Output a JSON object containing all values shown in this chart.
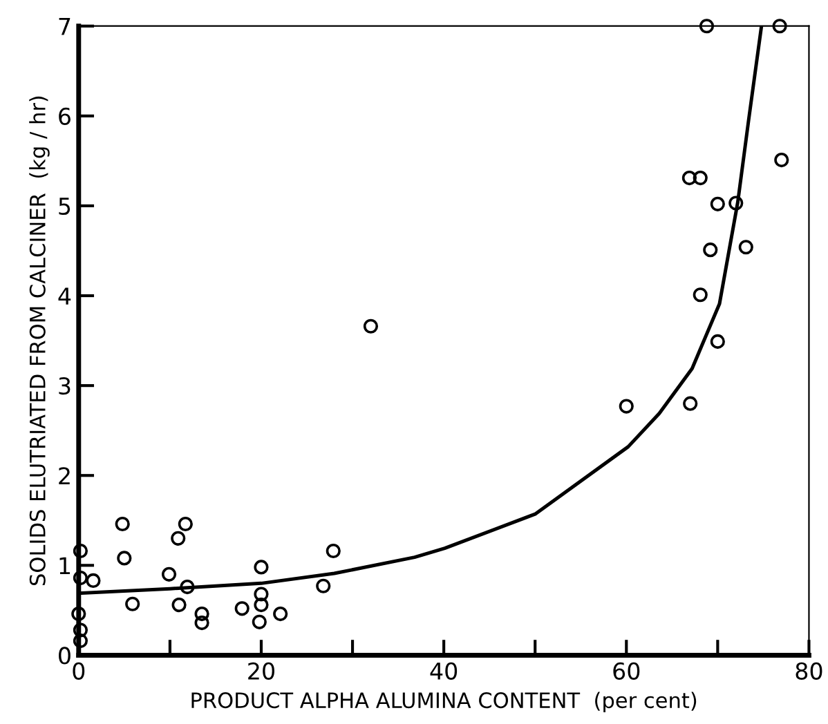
{
  "chart_data": {
    "type": "scatter",
    "xlabel": "PRODUCT ALPHA ALUMINA CONTENT  (per cent)",
    "ylabel": "SOLIDS ELUTRIATED FROM CALCINER  (kg / hr)",
    "xlim": [
      0,
      80
    ],
    "ylim": [
      0,
      7
    ],
    "xticks": [
      0,
      {
        "value": 10,
        "label": null
      },
      20,
      {
        "value": 30,
        "label": null
      },
      40,
      {
        "value": 50,
        "label": null
      },
      60,
      {
        "value": 70,
        "label": null
      },
      80
    ],
    "yticks": [
      0,
      1,
      2,
      3,
      4,
      5,
      6,
      7
    ],
    "grid": false,
    "legend": false,
    "marker": "circle",
    "series": [
      {
        "color": "#000000",
        "x": [
          0.2,
          0.2,
          1.6,
          0,
          0.2,
          0.2,
          4.8,
          5.0,
          5.9,
          9.9,
          10.9,
          11.7,
          11.0,
          11.9,
          13.5,
          13.5,
          17.9,
          20.0,
          20.0,
          20.0,
          19.8,
          22.1,
          26.8,
          27.9,
          32.0,
          68.8,
          76.8,
          77.0,
          66.9,
          68.1,
          70.0,
          72.0,
          69.2,
          73.1,
          68.1,
          70.0,
          60.0,
          67.0
        ],
        "values": [
          1.16,
          0.86,
          0.83,
          0.46,
          0.28,
          0.16,
          1.46,
          1.08,
          0.57,
          0.9,
          1.3,
          1.46,
          0.56,
          0.76,
          0.46,
          0.36,
          0.52,
          0.98,
          0.68,
          0.56,
          0.37,
          0.46,
          0.77,
          1.16,
          3.66,
          7.0,
          7.0,
          5.51,
          5.31,
          5.31,
          5.02,
          5.03,
          4.51,
          4.54,
          4.01,
          3.49,
          2.77,
          2.8
        ]
      },
      {
        "type": "line",
        "color": "#000000",
        "marker": "none",
        "line_style": "solid",
        "x": [
          0,
          10,
          20,
          28,
          36.8,
          40.1,
          50.0,
          60.2,
          63.6,
          67.2,
          70.2,
          72.2,
          73.4,
          74.8
        ],
        "values": [
          0.69,
          0.74,
          0.8,
          0.91,
          1.09,
          1.19,
          1.57,
          2.32,
          2.69,
          3.19,
          3.91,
          5.04,
          5.96,
          7.0
        ]
      }
    ]
  }
}
